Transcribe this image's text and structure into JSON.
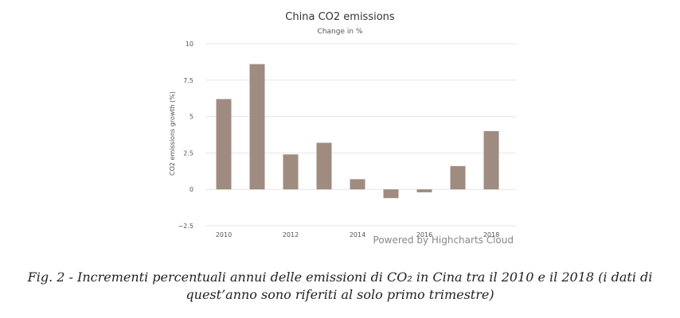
{
  "chart_data": {
    "type": "bar",
    "title": "China CO2 emissions",
    "subtitle": "Change in %",
    "ylabel": "CO2 emissions growth (%)",
    "xlabel": "",
    "x": [
      2010,
      2011,
      2012,
      2013,
      2014,
      2015,
      2016,
      2017,
      2018
    ],
    "values": [
      6.2,
      8.6,
      2.4,
      3.2,
      0.7,
      -0.6,
      -0.2,
      1.6,
      4.0
    ],
    "x_tick_labels": [
      "2010",
      "2012",
      "2014",
      "2016",
      "2018"
    ],
    "y_ticks": [
      -2.5,
      0,
      2.5,
      5,
      7.5,
      10
    ],
    "y_tick_labels": [
      "−2.5",
      "0",
      "2.5",
      "5",
      "7.5",
      "10"
    ],
    "ylim": [
      -2.5,
      10
    ],
    "grid": true,
    "bar_color": "#a08b80",
    "credit": "Powered by Highcharts Cloud"
  },
  "caption": {
    "line1": "Fig. 2  - Incrementi percentuali annui delle emissioni di CO₂ in Cina tra il 2010 e il 2018 (i dati di",
    "line2": "quest’anno sono riferiti al solo primo trimestre)"
  }
}
